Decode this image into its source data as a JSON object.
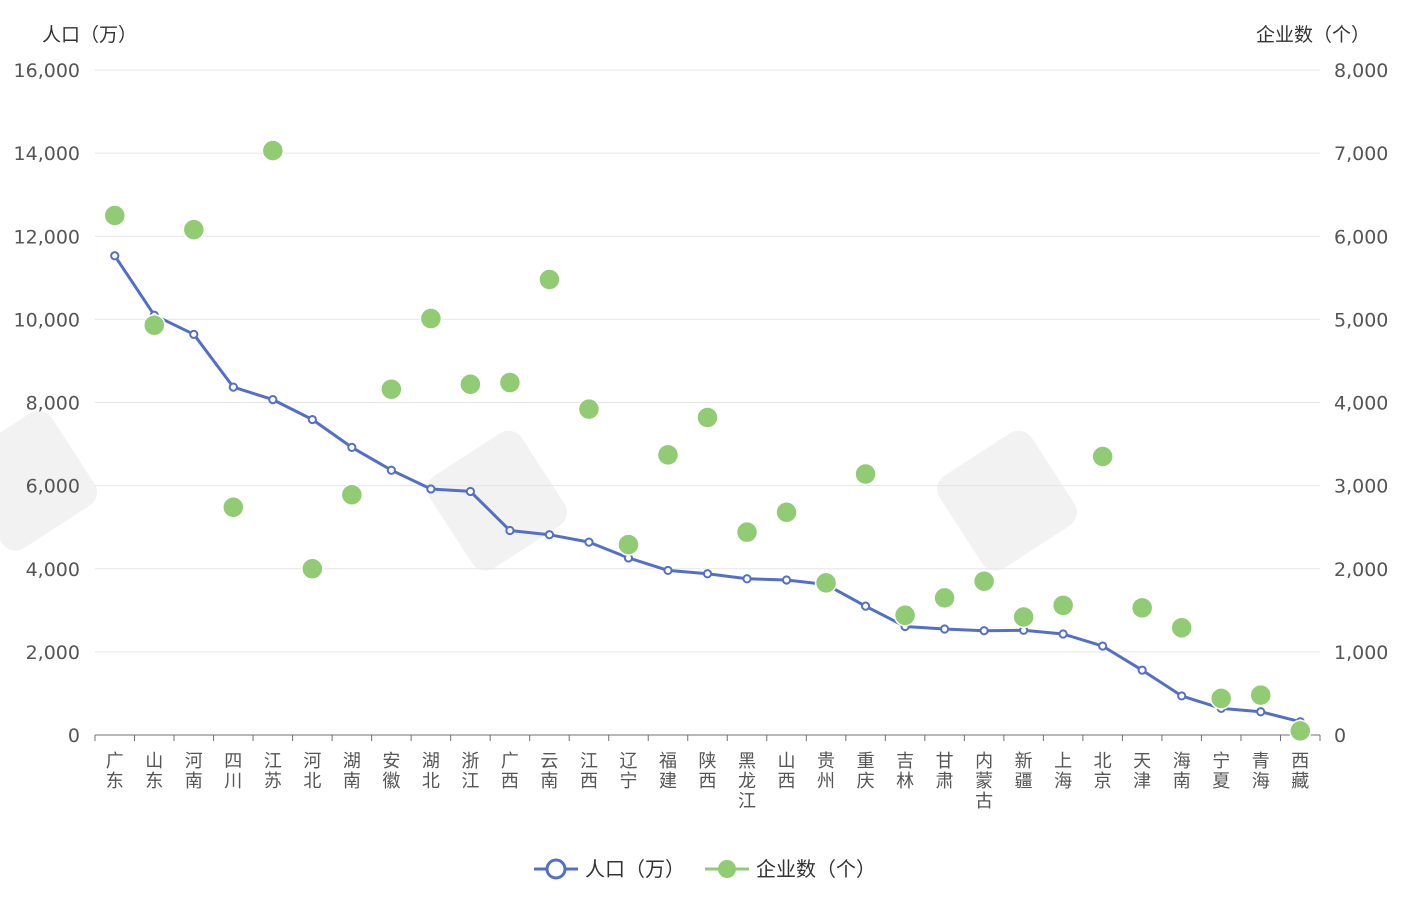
{
  "chart_data": {
    "type": "line+scatter",
    "y_left_title": "人口（万）",
    "y_right_title": "企业数（个）",
    "y_left_ticks": [
      "0",
      "2,000",
      "4,000",
      "6,000",
      "8,000",
      "10,000",
      "12,000",
      "14,000",
      "16,000"
    ],
    "y_right_ticks": [
      "0",
      "1,000",
      "2,000",
      "3,000",
      "4,000",
      "5,000",
      "6,000",
      "7,000",
      "8,000"
    ],
    "y_left_range": [
      0,
      16000
    ],
    "y_right_range": [
      0,
      8000
    ],
    "grid": true,
    "legend_position": "bottom-center",
    "categories": [
      "广东",
      "山东",
      "河南",
      "四川",
      "江苏",
      "河北",
      "湖南",
      "安徽",
      "湖北",
      "浙江",
      "广西",
      "云南",
      "江西",
      "辽宁",
      "福建",
      "陕西",
      "黑龙江",
      "山西",
      "贵州",
      "重庆",
      "吉林",
      "甘肃",
      "内蒙古",
      "新疆",
      "上海",
      "北京",
      "天津",
      "海南",
      "宁夏",
      "青海",
      "西藏"
    ],
    "series": [
      {
        "name": "人口（万）",
        "kind": "line",
        "axis": "left",
        "color": "#5470c6",
        "values": [
          11530,
          10100,
          9640,
          8370,
          8070,
          7590,
          6920,
          6370,
          5920,
          5860,
          4920,
          4820,
          4640,
          4260,
          3960,
          3880,
          3760,
          3730,
          3620,
          3100,
          2610,
          2550,
          2510,
          2520,
          2430,
          2140,
          1560,
          940,
          640,
          560,
          320
        ]
      },
      {
        "name": "企业数（个）",
        "kind": "scatter",
        "axis": "right",
        "color": "#91cc75",
        "values": [
          6250,
          4930,
          6080,
          2740,
          7030,
          2000,
          2890,
          4160,
          5010,
          4220,
          4240,
          5480,
          3920,
          2290,
          3370,
          3820,
          2440,
          2680,
          1830,
          3140,
          1440,
          1650,
          1850,
          1420,
          1560,
          3350,
          1530,
          1290,
          440,
          480,
          50
        ]
      }
    ]
  }
}
